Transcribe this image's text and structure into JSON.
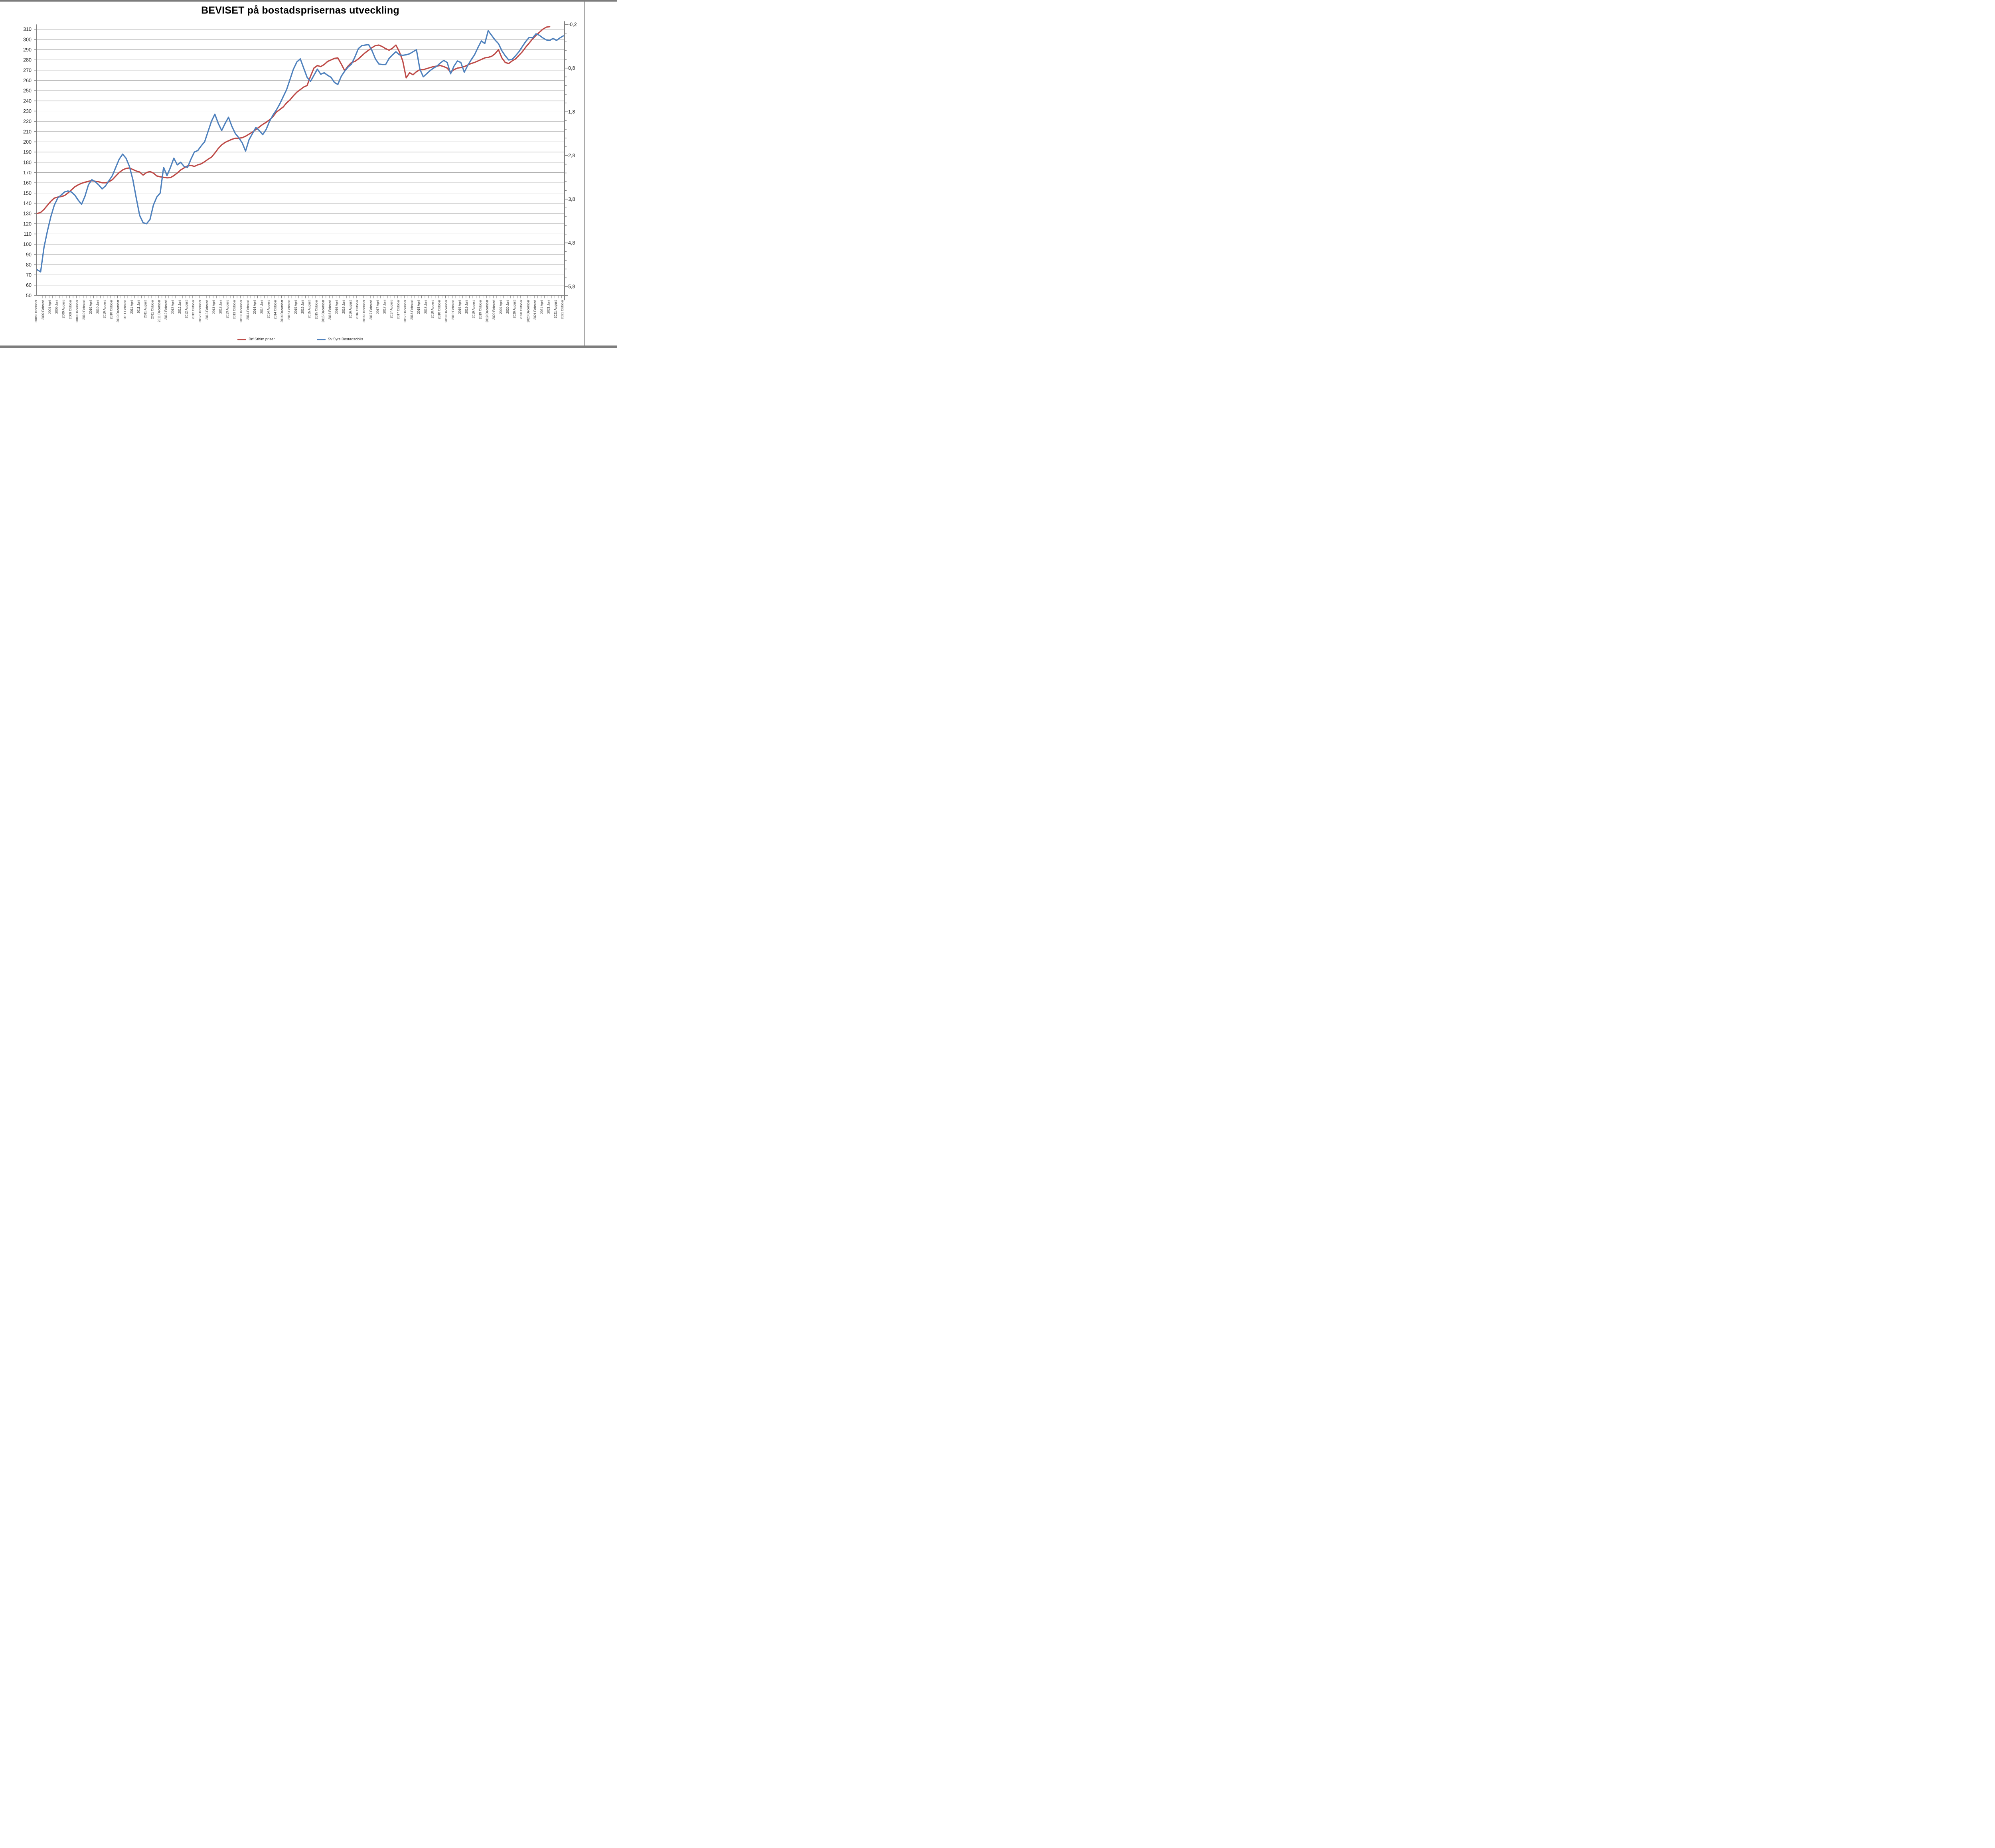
{
  "title": "BEVISET på bostadsprisernas utveckling",
  "legend": [
    {
      "label": "Brf Sthlm priser",
      "color": "#BE4B48"
    },
    {
      "label": "Sv 5yrs Bostadsoblis",
      "color": "#4F81BD"
    }
  ],
  "colors": {
    "gridline": "#a8a8a8",
    "axis": "#7f7f7f",
    "tick_text": "#262626",
    "background": "#ffffff"
  },
  "chart_data": {
    "type": "line",
    "title": "BEVISET på bostadsprisernas utveckling",
    "x_frequency": "monthly",
    "x_first_point": "2008 December",
    "x_last_point": "2021 Oktober",
    "grid": "horizontal-only",
    "legend_position": "bottom-center",
    "y_left": {
      "min": 50,
      "max": 310,
      "step": 10,
      "labels": [
        "310",
        "300",
        "290",
        "280",
        "270",
        "260",
        "250",
        "240",
        "230",
        "220",
        "210",
        "200",
        "190",
        "180",
        "170",
        "160",
        "150",
        "140",
        "130",
        "120",
        "110",
        "100",
        "90",
        "80",
        "70",
        "60",
        "50"
      ]
    },
    "y_right": {
      "labels": [
        "-0,2",
        "0,8",
        "1,8",
        "2,8",
        "3,8",
        "4,8",
        "5,8"
      ],
      "direction": "inverted",
      "minor_ticks_per_major": 5
    },
    "x_tick_labels": [
      "2008 December",
      "2009 Februari",
      "2009 April",
      "2009 Juni",
      "2009 Augusti",
      "2009 Oktober",
      "2009 December",
      "2010 Februari",
      "2010 April",
      "2010 Juni",
      "2010 Augusti",
      "2010 Oktober",
      "2010 December",
      "2011 Februari",
      "2011 April",
      "2011 Juni",
      "2011 Augusti",
      "2011 Oktober",
      "2011 December",
      "2012 Februari",
      "2012 April",
      "2012 Juni",
      "2012 Augusti",
      "2012 Oktober",
      "2012 December",
      "2013 Februari",
      "2013 April",
      "2013 Juni",
      "2013 Augusti",
      "2013 Oktober",
      "2013 December",
      "2014 Februari",
      "2014 April",
      "2014 Juni",
      "2014 Augusti",
      "2014 Oktober",
      "2014 December",
      "2015 Februari",
      "2015 April",
      "2015 Juni",
      "2015 Augusti",
      "2015 Oktober",
      "2015 December",
      "2016 Februari",
      "2016 April",
      "2016 Juni",
      "2016 Augusti",
      "2016 Oktober",
      "2016 December",
      "2017 Februari",
      "2017 April",
      "2017 Juni",
      "2017 Augusti",
      "2017 Oktober",
      "2017 December",
      "2018 Februari",
      "2018 April",
      "2018 Juni",
      "2018 Augusti",
      "2018 Oktober",
      "2018 December",
      "2019 Februari",
      "2019 April",
      "2019 Juni",
      "2019 Augusti",
      "2019 Oktober",
      "2019 December",
      "2020 Februari",
      "2020 April",
      "2020 Juni",
      "2020 Augusti",
      "2020 Oktober",
      "2020 December",
      "2021 Februari",
      "2021 April",
      "2021 Juni",
      "2021 Augusti",
      "2021 Oktober"
    ],
    "series": [
      {
        "name": "Brf Sthlm priser",
        "color": "#BE4B48",
        "axis": "left",
        "values": [
          130,
          131,
          134,
          138,
          142,
          145,
          146,
          146.5,
          147.5,
          150,
          153,
          156,
          158,
          159.5,
          160.5,
          161.5,
          162,
          161.5,
          161,
          160,
          160,
          161,
          163,
          166.5,
          170,
          172.5,
          174,
          174.5,
          173,
          171.5,
          170.5,
          167.5,
          170,
          171,
          169.5,
          166.7,
          165.8,
          165.3,
          164.8,
          165,
          167,
          169.5,
          172.5,
          174.5,
          176.5,
          177,
          176,
          177.5,
          178.5,
          180.5,
          183,
          185,
          189,
          193.5,
          197,
          199.5,
          201,
          202.5,
          203.5,
          203.5,
          204,
          205.5,
          207.5,
          209.5,
          212,
          214.5,
          217,
          219,
          221.5,
          224.5,
          229,
          231.5,
          234,
          238,
          241,
          245,
          248.5,
          251,
          253.5,
          255,
          264,
          272,
          274.5,
          273.5,
          275.5,
          278.5,
          280,
          281.5,
          282,
          276,
          269.5,
          274,
          277.5,
          278.5,
          281,
          284,
          287,
          289.5,
          292,
          294,
          294.5,
          293,
          291,
          289.5,
          291.5,
          294.5,
          288,
          279,
          262.5,
          267.5,
          265.5,
          268.5,
          270.5,
          270.5,
          271.5,
          272.5,
          273.5,
          274,
          274.5,
          273.5,
          272,
          268,
          270.5,
          272,
          272.5,
          273.5,
          275,
          276.5,
          277.5,
          279,
          280.5,
          282,
          282.5,
          283.5,
          286,
          290,
          282,
          277.5,
          276.5,
          279,
          281,
          284.5,
          288,
          292.5,
          296.5,
          300.5,
          304,
          307,
          310,
          312,
          312.5,
          null,
          null,
          null,
          null
        ]
      },
      {
        "name": "Sv 5yrs Bostadsoblis",
        "color": "#4F81BD",
        "axis": "right",
        "values": [
          75,
          73,
          97,
          113,
          127,
          138,
          145,
          148,
          151,
          152,
          151,
          148,
          143,
          139,
          147,
          158,
          163,
          161,
          158,
          154,
          157,
          162,
          167,
          175,
          183,
          188,
          184,
          176,
          163,
          145,
          128,
          121,
          120,
          124,
          138,
          146,
          150,
          175,
          167,
          175,
          184,
          177.5,
          180,
          176,
          175,
          183,
          190,
          191.5,
          196,
          200,
          210,
          220,
          227,
          218,
          211,
          218,
          224,
          215,
          208,
          204,
          199,
          191,
          202,
          208,
          214,
          211,
          207,
          212,
          220,
          226,
          231,
          237,
          244,
          251,
          261,
          271,
          278,
          281,
          272,
          263,
          259,
          265,
          271,
          266,
          267.5,
          265,
          263,
          258,
          256,
          264,
          269,
          273,
          276,
          283,
          291,
          294,
          294.5,
          295,
          289,
          281,
          276,
          275.5,
          275.5,
          281.5,
          285,
          288,
          285,
          284.5,
          285,
          286,
          288,
          290,
          271,
          263.5,
          266.5,
          269.5,
          272,
          274,
          277,
          279.5,
          277.5,
          266.5,
          274,
          279,
          277.5,
          268,
          274.5,
          280,
          285,
          292,
          298.5,
          296,
          308.5,
          304,
          299.5,
          296,
          289,
          284,
          280,
          280.5,
          284,
          288,
          293,
          298,
          302,
          301.5,
          305.5,
          304,
          301.5,
          299.5,
          299,
          301,
          299,
          301.5,
          303.5
        ]
      }
    ]
  }
}
